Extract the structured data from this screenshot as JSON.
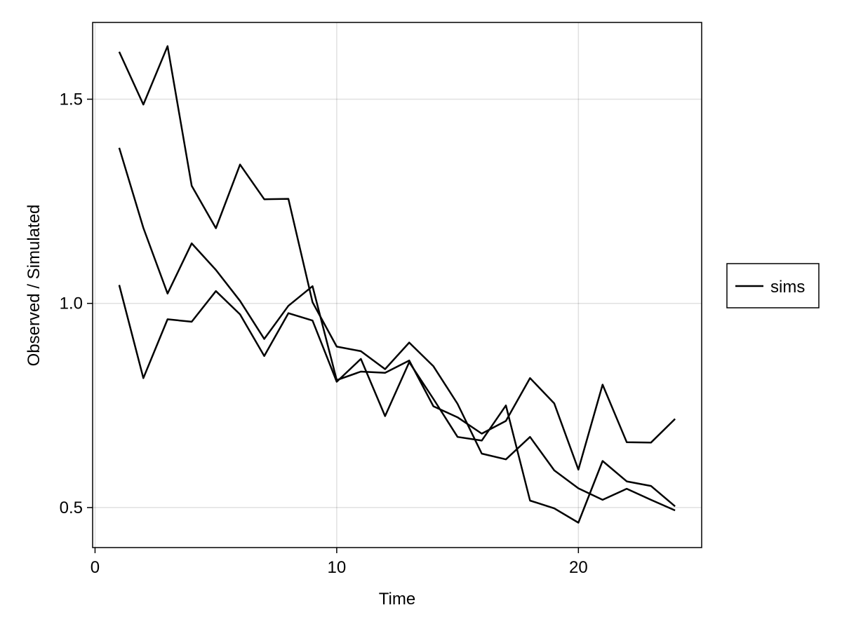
{
  "chart_data": {
    "type": "line",
    "xlabel": "Time",
    "ylabel": "Observed / Simulated",
    "xlim": [
      -0.1,
      25.1
    ],
    "ylim": [
      0.402,
      1.688
    ],
    "xticks": [
      0,
      10,
      20
    ],
    "xtick_labels": [
      "0",
      "10",
      "20"
    ],
    "yticks": [
      0.5,
      1.0,
      1.5
    ],
    "ytick_labels": [
      "0.5",
      "1.0",
      "1.5"
    ],
    "grid": true,
    "legend_position": "right",
    "legend": [
      {
        "label": "sims",
        "color": "#000000"
      }
    ],
    "series": [
      {
        "x": [
          1,
          2,
          3,
          4,
          5,
          6,
          7,
          8,
          9,
          10,
          11,
          12,
          13,
          14,
          15,
          16,
          17,
          18,
          19,
          20,
          21,
          22,
          23,
          24
        ],
        "values": [
          1.616,
          1.487,
          1.63,
          1.288,
          1.184,
          1.34,
          1.255,
          1.256,
          1.003,
          0.894,
          0.883,
          0.839,
          0.904,
          0.846,
          0.754,
          0.632,
          0.618,
          0.673,
          0.591,
          0.547,
          0.519,
          0.546,
          0.519,
          0.493
        ],
        "color": "#000000"
      },
      {
        "x": [
          1,
          2,
          3,
          4,
          5,
          6,
          7,
          8,
          9,
          10,
          11,
          12,
          13,
          14,
          15,
          16,
          17,
          18,
          19,
          20,
          21,
          22,
          23,
          24
        ],
        "values": [
          1.381,
          1.185,
          1.024,
          1.147,
          1.082,
          1.006,
          0.913,
          0.994,
          1.042,
          0.812,
          0.833,
          0.83,
          0.86,
          0.748,
          0.721,
          0.681,
          0.712,
          0.817,
          0.755,
          0.593,
          0.801,
          0.66,
          0.659,
          0.717
        ],
        "color": "#000000"
      },
      {
        "x": [
          1,
          2,
          3,
          4,
          5,
          6,
          7,
          8,
          9,
          10,
          11,
          12,
          13,
          14,
          15,
          16,
          17,
          18,
          19,
          20,
          21,
          22,
          23,
          24
        ],
        "values": [
          1.045,
          0.817,
          0.961,
          0.955,
          1.03,
          0.973,
          0.871,
          0.976,
          0.958,
          0.808,
          0.864,
          0.724,
          0.856,
          0.766,
          0.673,
          0.664,
          0.75,
          0.517,
          0.498,
          0.463,
          0.614,
          0.564,
          0.553,
          0.503
        ],
        "color": "#000000"
      }
    ]
  }
}
